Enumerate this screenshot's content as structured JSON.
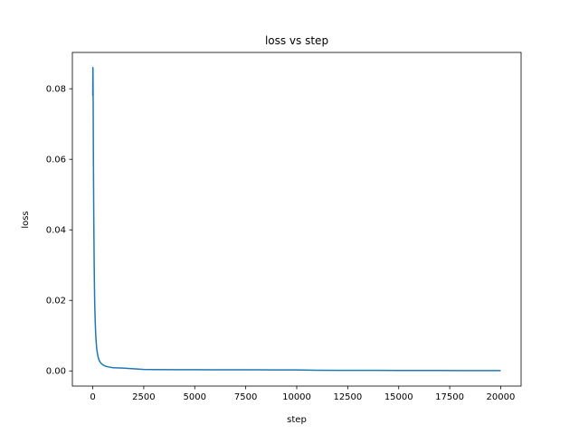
{
  "chart_data": {
    "type": "line",
    "title": "loss vs step",
    "xlabel": "step",
    "ylabel": "loss",
    "xlim": [
      -1000,
      21000
    ],
    "ylim": [
      -0.0043,
      0.0903
    ],
    "xticks": [
      0,
      2500,
      5000,
      7500,
      10000,
      12500,
      15000,
      17500,
      20000
    ],
    "xtick_labels": [
      "0",
      "2500",
      "5000",
      "7500",
      "10000",
      "12500",
      "15000",
      "17500",
      "20000"
    ],
    "yticks": [
      0.0,
      0.02,
      0.04,
      0.06,
      0.08
    ],
    "ytick_labels": [
      "0.00",
      "0.02",
      "0.04",
      "0.06",
      "0.08"
    ],
    "grid": false,
    "legend": false,
    "series": [
      {
        "color": "#1f77b4",
        "x": [
          0,
          5,
          10,
          20,
          30,
          40,
          50,
          60,
          70,
          80,
          90,
          100,
          120,
          140,
          160,
          180,
          200,
          250,
          300,
          350,
          400,
          500,
          600,
          700,
          800,
          1000,
          1200,
          1500,
          2000,
          2500,
          3000,
          4000,
          5000,
          6000,
          7000,
          8000,
          9000,
          10000,
          11000,
          12000,
          13000,
          14000,
          15000,
          16000,
          17000,
          18000,
          19000,
          20000
        ],
        "y": [
          0.078,
          0.086,
          0.0855,
          0.075,
          0.062,
          0.052,
          0.043,
          0.036,
          0.03,
          0.025,
          0.021,
          0.018,
          0.014,
          0.011,
          0.0088,
          0.0072,
          0.006,
          0.0042,
          0.0032,
          0.0026,
          0.0022,
          0.0017,
          0.0014,
          0.0012,
          0.0011,
          0.0009,
          0.00085,
          0.0008,
          0.0006,
          0.0004,
          0.00038,
          0.00035,
          0.00034,
          0.00033,
          0.00032,
          0.0003,
          0.00029,
          0.00028,
          0.00018,
          0.00016,
          0.00015,
          0.00014,
          0.00013,
          0.00012,
          0.00011,
          0.0001,
          0.0001,
          9e-05
        ]
      }
    ]
  }
}
